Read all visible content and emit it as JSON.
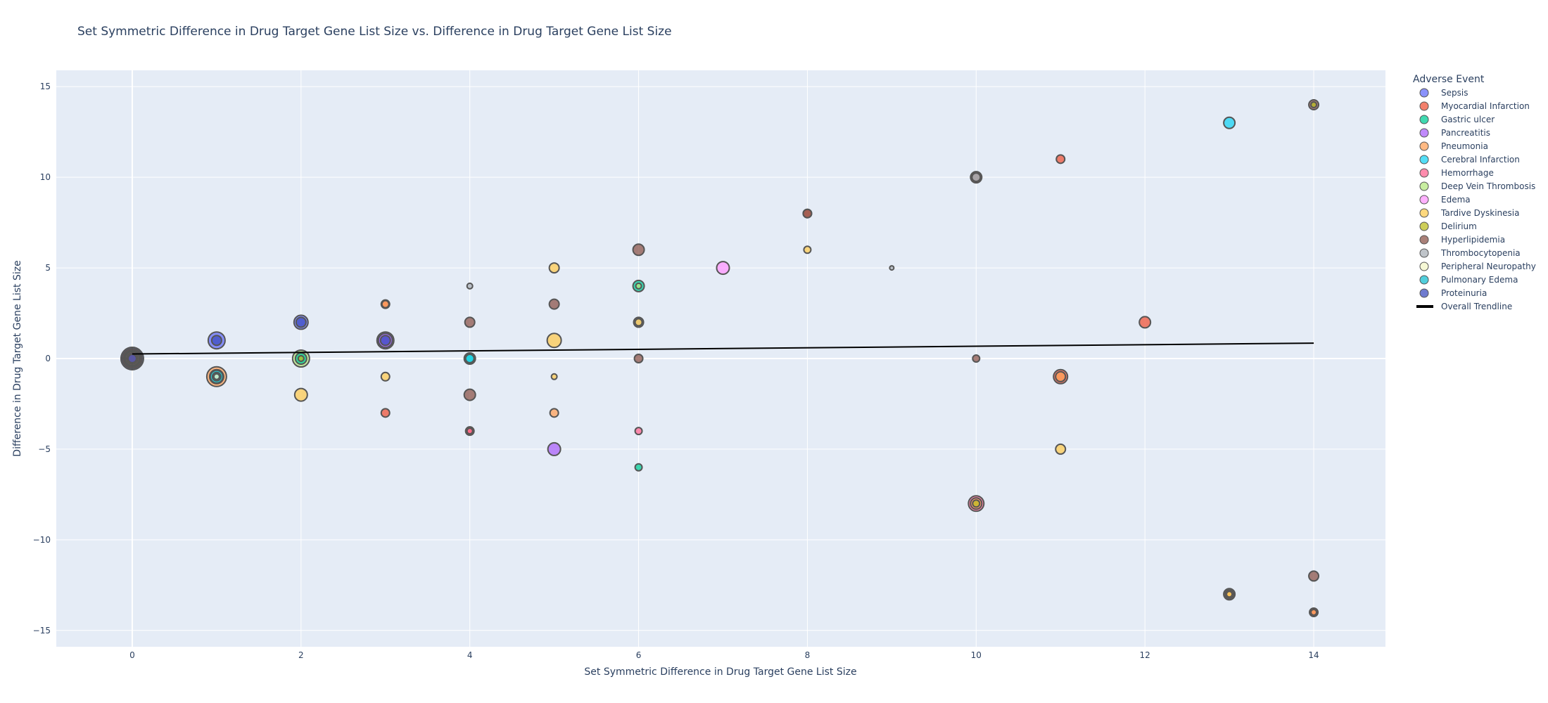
{
  "chart_data": {
    "type": "scatter",
    "title": "Set Symmetric Difference in Drug Target Gene List Size vs. Difference in Drug Target Gene List Size",
    "xlabel": "Set Symmetric Difference in Drug Target Gene List Size",
    "ylabel": "Difference in Drug Target Gene List Size",
    "xlim": [
      -0.9,
      14.85
    ],
    "ylim": [
      -15.9,
      15.9
    ],
    "xticks": [
      0,
      2,
      4,
      6,
      8,
      10,
      12,
      14
    ],
    "yticks": [
      -15,
      -10,
      -5,
      0,
      5,
      10,
      15
    ],
    "xtick_labels": [
      "0",
      "2",
      "4",
      "6",
      "8",
      "10",
      "12",
      "14"
    ],
    "ytick_labels": [
      "−15",
      "−10",
      "−5",
      "0",
      "5",
      "10",
      "15"
    ],
    "grid": true,
    "legend": {
      "title": "Adverse Event",
      "placement": "right"
    },
    "series": [
      {
        "name": "Sepsis",
        "color": "#636efa",
        "points": [
          [
            0,
            0,
            16
          ],
          [
            1,
            1,
            12
          ],
          [
            2,
            2,
            10
          ],
          [
            3,
            1,
            12
          ]
        ]
      },
      {
        "name": "Myocardial Infarction",
        "color": "#ef553b",
        "points": [
          [
            0,
            0,
            14
          ],
          [
            3,
            3,
            6
          ],
          [
            3,
            -3,
            6
          ],
          [
            4,
            -4,
            6
          ],
          [
            8,
            8,
            6
          ],
          [
            11,
            11,
            6
          ],
          [
            11,
            -1,
            10
          ],
          [
            12,
            2,
            8
          ],
          [
            14,
            -14,
            6
          ]
        ]
      },
      {
        "name": "Gastric ulcer",
        "color": "#00cc96",
        "points": [
          [
            0,
            0,
            12
          ],
          [
            1,
            -1,
            10
          ],
          [
            2,
            0,
            8
          ],
          [
            4,
            0,
            8
          ],
          [
            6,
            4,
            8
          ],
          [
            6,
            -6,
            5
          ]
        ]
      },
      {
        "name": "Pancreatitis",
        "color": "#ab63fa",
        "points": [
          [
            0,
            0,
            10
          ],
          [
            3,
            1,
            10
          ],
          [
            5,
            -5,
            9
          ]
        ]
      },
      {
        "name": "Pneumonia",
        "color": "#ffa15a",
        "points": [
          [
            0,
            0,
            10
          ],
          [
            1,
            -1,
            14
          ],
          [
            3,
            3,
            5
          ],
          [
            5,
            -3,
            6
          ],
          [
            10,
            -8,
            8
          ],
          [
            11,
            -1,
            7
          ],
          [
            13,
            -13,
            6
          ],
          [
            14,
            -14,
            4
          ]
        ]
      },
      {
        "name": "Cerebral Infarction",
        "color": "#19d3f3",
        "points": [
          [
            1,
            -1,
            9
          ],
          [
            4,
            0,
            6
          ],
          [
            13,
            13,
            8
          ]
        ]
      },
      {
        "name": "Hemorrhage",
        "color": "#ff6692",
        "points": [
          [
            4,
            -4,
            4
          ],
          [
            6,
            -4,
            5
          ],
          [
            10,
            -8,
            11
          ]
        ]
      },
      {
        "name": "Deep Vein Thrombosis",
        "color": "#b6e880",
        "points": [
          [
            2,
            0,
            12
          ],
          [
            6,
            4,
            4
          ]
        ]
      },
      {
        "name": "Edema",
        "color": "#ff97ff",
        "points": [
          [
            7,
            5,
            9
          ]
        ]
      },
      {
        "name": "Tardive Dyskinesia",
        "color": "#fecb52",
        "points": [
          [
            0,
            0,
            8
          ],
          [
            2,
            -2,
            9
          ],
          [
            3,
            -1,
            6
          ],
          [
            5,
            5,
            7
          ],
          [
            5,
            1,
            10
          ],
          [
            5,
            -1,
            4
          ],
          [
            6,
            2,
            5
          ],
          [
            8,
            6,
            5
          ],
          [
            11,
            -5,
            7
          ],
          [
            13,
            -13,
            4
          ]
        ]
      },
      {
        "name": "Delirium",
        "color": "#bcbd22",
        "points": [
          [
            2,
            0,
            4
          ],
          [
            10,
            -8,
            5
          ],
          [
            14,
            14,
            4
          ]
        ]
      },
      {
        "name": "Hyperlipidemia",
        "color": "#8c564b",
        "points": [
          [
            0,
            0,
            6
          ],
          [
            4,
            2,
            7
          ],
          [
            4,
            -2,
            8
          ],
          [
            5,
            3,
            7
          ],
          [
            6,
            6,
            8
          ],
          [
            6,
            0,
            6
          ],
          [
            8,
            8,
            6
          ],
          [
            10,
            10,
            8
          ],
          [
            10,
            0,
            5
          ],
          [
            14,
            14,
            7
          ],
          [
            14,
            -12,
            7
          ]
        ]
      },
      {
        "name": "Thrombocytopenia",
        "color": "#aab0b7",
        "points": [
          [
            4,
            4,
            4
          ],
          [
            6,
            2,
            7
          ],
          [
            9,
            5,
            3
          ],
          [
            10,
            10,
            6
          ],
          [
            13,
            -13,
            8
          ]
        ]
      },
      {
        "name": "Peripheral Neuropathy",
        "color": "#f3f5c7",
        "points": [
          [
            1,
            -1,
            4
          ]
        ]
      },
      {
        "name": "Pulmonary Edema",
        "color": "#17becf",
        "points": [
          [
            1,
            -1,
            6
          ]
        ]
      },
      {
        "name": "Proteinuria",
        "color": "#3f4fbf",
        "points": [
          [
            0,
            0,
            6
          ],
          [
            1,
            1,
            7
          ],
          [
            2,
            2,
            7
          ],
          [
            3,
            1,
            7
          ]
        ]
      }
    ],
    "trendline": {
      "name": "Overall Trendline",
      "color": "#000000",
      "x": [
        0,
        14
      ],
      "y": [
        0.25,
        0.85
      ]
    }
  }
}
